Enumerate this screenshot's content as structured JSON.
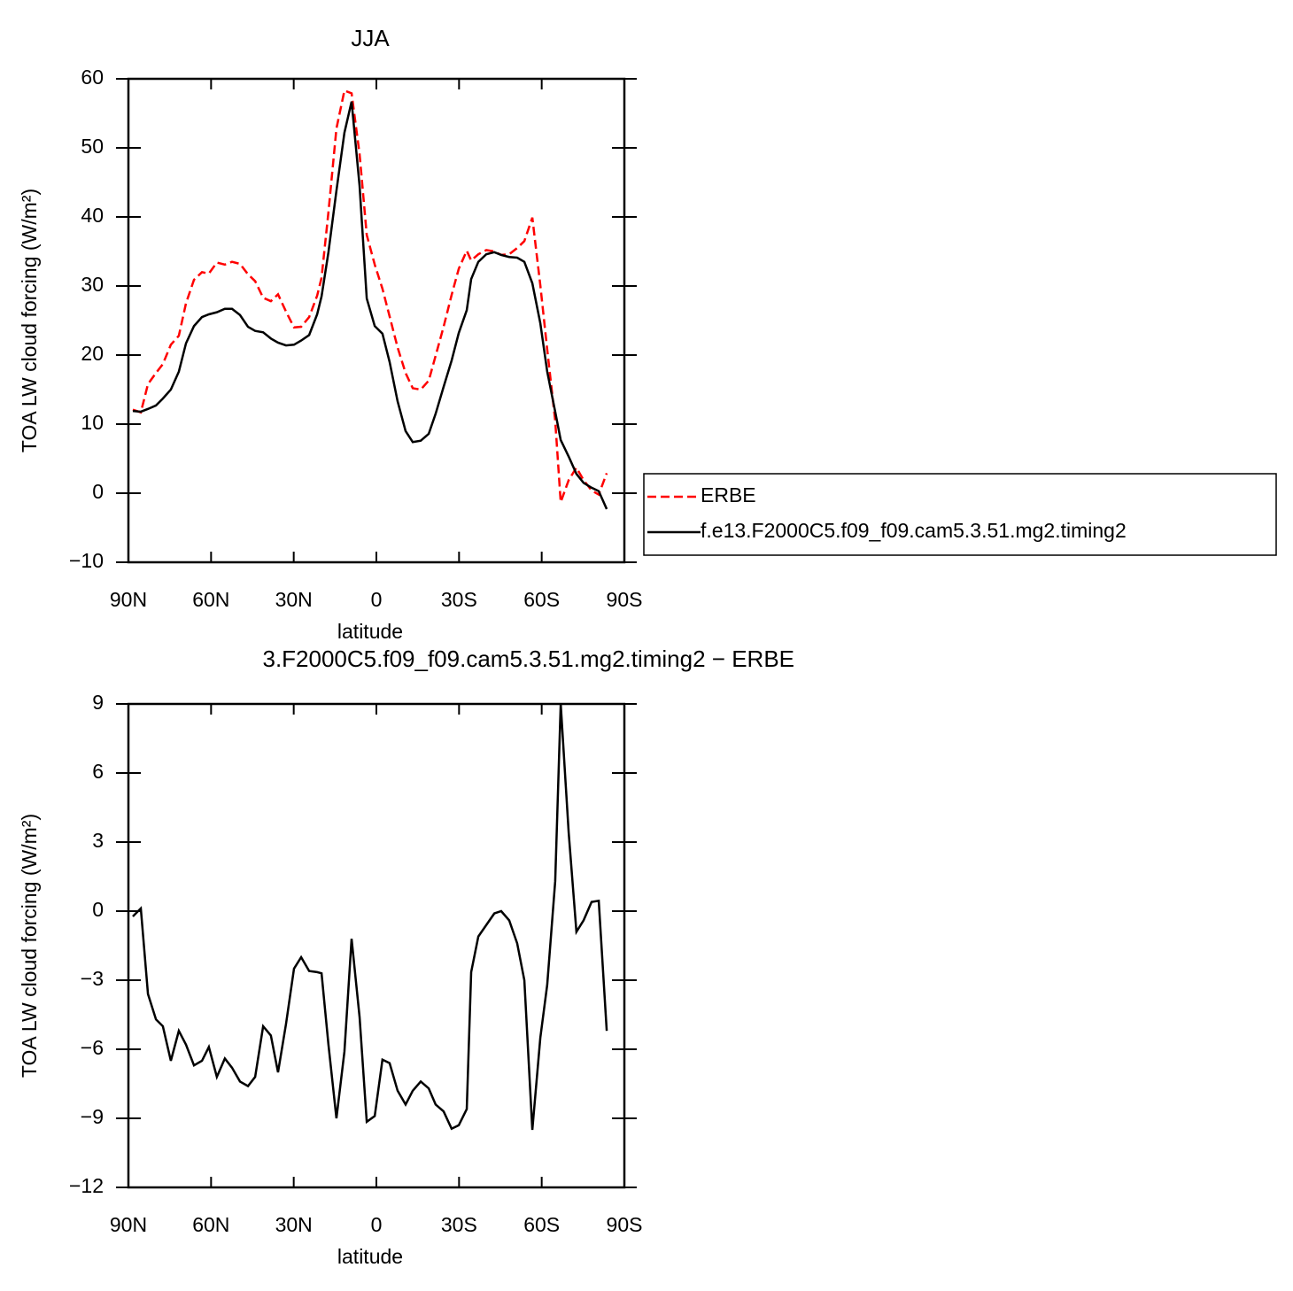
{
  "chart_data": [
    {
      "type": "line",
      "title": "JJA",
      "xlabel": "latitude",
      "ylabel": "TOA LW cloud forcing (W/m²)",
      "x": [
        88.4,
        85.5,
        82.9,
        80.0,
        77.5,
        74.6,
        71.7,
        69.1,
        66.2,
        63.3,
        60.8,
        57.9,
        55.0,
        52.4,
        49.5,
        46.6,
        44.0,
        41.1,
        38.3,
        35.7,
        32.8,
        29.9,
        27.3,
        24.4,
        21.5,
        19.9,
        17.4,
        14.5,
        11.6,
        9.0,
        6.1,
        3.5,
        0.6,
        -2.2,
        -4.8,
        -7.7,
        -10.6,
        -13.2,
        -16.1,
        -19.0,
        -21.5,
        -24.4,
        -27.3,
        -29.9,
        -32.8,
        -34.4,
        -37.0,
        -39.9,
        -42.8,
        -45.3,
        -48.2,
        -51.1,
        -53.7,
        -56.6,
        -59.5,
        -62.0,
        -64.9,
        -66.9,
        -69.8,
        -72.6,
        -75.2,
        -78.1,
        -80.7,
        -83.6
      ],
      "xlim": [
        90,
        -90
      ],
      "xticks": [
        {
          "value": 90,
          "label": "90N"
        },
        {
          "value": 60,
          "label": "60N"
        },
        {
          "value": 30,
          "label": "30N"
        },
        0,
        {
          "value": -30,
          "label": "30S"
        },
        {
          "value": -60,
          "label": "60S"
        },
        {
          "value": -90,
          "label": "90S"
        }
      ],
      "ylim": [
        -10,
        60
      ],
      "yticks": [
        {
          "value": -10,
          "label": "−10"
        },
        0,
        10,
        20,
        30,
        40,
        50,
        60
      ],
      "legend": "right",
      "series": [
        {
          "name": "ERBE",
          "color": "#ff0000",
          "dash": true,
          "values": [
            12.1,
            11.7,
            15.8,
            17.4,
            18.7,
            21.5,
            22.8,
            27.5,
            30.9,
            32.0,
            31.8,
            33.4,
            33.1,
            33.5,
            33.2,
            31.7,
            30.7,
            28.3,
            27.8,
            28.8,
            26.3,
            24.0,
            24.1,
            25.5,
            28.6,
            31.2,
            40.7,
            52.8,
            58.3,
            57.9,
            49.1,
            37.4,
            33.1,
            29.6,
            25.6,
            21.1,
            17.4,
            15.2,
            15.0,
            16.3,
            19.9,
            24.1,
            28.7,
            32.5,
            35.1,
            33.7,
            34.6,
            35.2,
            35.0,
            34.5,
            34.6,
            35.5,
            36.5,
            39.9,
            30.1,
            20.8,
            10.5,
            -1.3,
            1.9,
            3.7,
            1.9,
            0.4,
            -0.2,
            2.9
          ]
        },
        {
          "name": "f.e13.F2000C5.f09_f09.cam5.3.51.mg2.timing2",
          "color": "#000000",
          "dash": false,
          "values": [
            11.9,
            11.8,
            12.2,
            12.7,
            13.7,
            15.0,
            17.6,
            21.7,
            24.2,
            25.5,
            25.9,
            26.2,
            26.7,
            26.7,
            25.8,
            24.1,
            23.5,
            23.3,
            22.4,
            21.8,
            21.4,
            21.5,
            22.1,
            22.9,
            25.9,
            28.5,
            34.9,
            43.8,
            52.2,
            56.7,
            44.5,
            28.2,
            24.2,
            23.1,
            19.0,
            13.3,
            9.0,
            7.4,
            7.6,
            8.6,
            11.5,
            15.4,
            19.2,
            23.2,
            26.5,
            31.0,
            33.5,
            34.6,
            34.9,
            34.5,
            34.2,
            34.1,
            33.5,
            30.4,
            24.6,
            17.6,
            11.8,
            7.7,
            5.3,
            2.8,
            1.5,
            0.8,
            0.3,
            -2.3
          ]
        }
      ]
    },
    {
      "type": "line",
      "title": "3.F2000C5.f09_f09.cam5.3.51.mg2.timing2 − ERBE",
      "xlabel": "latitude",
      "ylabel": "TOA LW cloud forcing (W/m²)",
      "x": [
        88.4,
        85.5,
        82.9,
        80.0,
        77.5,
        74.6,
        71.7,
        69.1,
        66.2,
        63.3,
        60.8,
        57.9,
        55.0,
        52.4,
        49.5,
        46.6,
        44.0,
        41.1,
        38.3,
        35.7,
        32.8,
        29.9,
        27.3,
        24.4,
        21.5,
        19.9,
        17.4,
        14.5,
        11.6,
        9.0,
        6.1,
        3.5,
        0.6,
        -2.2,
        -4.8,
        -7.7,
        -10.6,
        -13.2,
        -16.1,
        -19.0,
        -21.5,
        -24.4,
        -27.3,
        -29.9,
        -32.8,
        -34.4,
        -37.0,
        -39.9,
        -42.8,
        -45.3,
        -48.2,
        -51.1,
        -53.7,
        -56.6,
        -59.5,
        -62.0,
        -64.9,
        -66.9,
        -69.8,
        -72.6,
        -75.2,
        -78.1,
        -80.7,
        -83.6
      ],
      "xlim": [
        90,
        -90
      ],
      "xticks": [
        {
          "value": 90,
          "label": "90N"
        },
        {
          "value": 60,
          "label": "60N"
        },
        {
          "value": 30,
          "label": "30N"
        },
        0,
        {
          "value": -30,
          "label": "30S"
        },
        {
          "value": -60,
          "label": "60S"
        },
        {
          "value": -90,
          "label": "90S"
        }
      ],
      "ylim": [
        -12,
        9
      ],
      "yticks": [
        {
          "value": -12,
          "label": "−12"
        },
        {
          "value": -9,
          "label": "−9"
        },
        {
          "value": -6,
          "label": "−6"
        },
        {
          "value": -3,
          "label": "−3"
        },
        0,
        3,
        6,
        9
      ],
      "series": [
        {
          "color": "#000000",
          "dash": false,
          "values": [
            -0.23,
            0.12,
            -3.6,
            -4.7,
            -5.0,
            -6.5,
            -5.2,
            -5.8,
            -6.7,
            -6.5,
            -5.9,
            -7.2,
            -6.4,
            -6.8,
            -7.4,
            -7.6,
            -7.2,
            -5.0,
            -5.4,
            -7.0,
            -4.9,
            -2.5,
            -2.0,
            -2.6,
            -2.65,
            -2.7,
            -5.8,
            -9.0,
            -6.1,
            -1.2,
            -4.6,
            -9.15,
            -8.9,
            -6.45,
            -6.6,
            -7.8,
            -8.4,
            -7.8,
            -7.4,
            -7.7,
            -8.4,
            -8.7,
            -9.45,
            -9.3,
            -8.6,
            -2.65,
            -1.1,
            -0.6,
            -0.1,
            0.0,
            -0.4,
            -1.4,
            -3.0,
            -9.5,
            -5.5,
            -3.2,
            1.3,
            9.0,
            3.4,
            -0.9,
            -0.4,
            0.4,
            0.45,
            -5.2
          ]
        }
      ]
    }
  ]
}
